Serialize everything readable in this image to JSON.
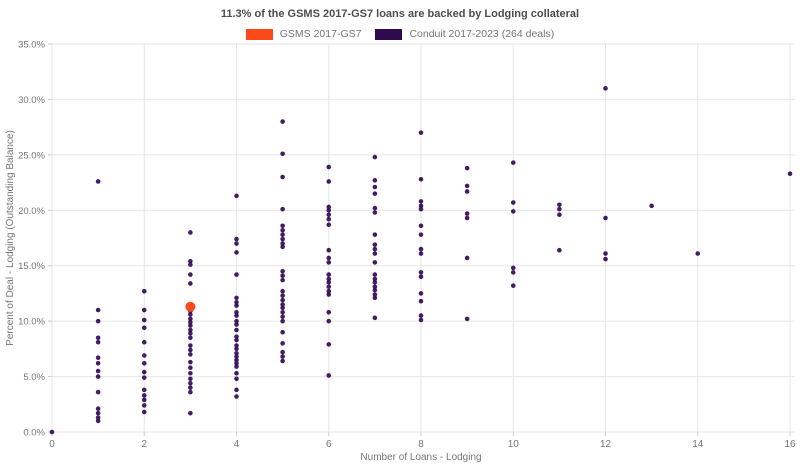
{
  "legend": [
    {
      "label": "GSMS 2017-GS7",
      "color": "#fb4a19"
    },
    {
      "label": "Conduit 2017-2023 (264 deals)",
      "color": "#2f0a4e"
    }
  ],
  "chart_data": {
    "type": "scatter",
    "title": "11.3% of the GSMS 2017-GS7 loans are backed by Lodging collateral",
    "xlabel": "Number of Loans - Lodging",
    "ylabel": "Percent of Deal - Lodging (Outstanding Balance)",
    "xlim": [
      0,
      16
    ],
    "ylim": [
      0,
      35
    ],
    "x_ticks": [
      0,
      2,
      4,
      6,
      8,
      10,
      12,
      14,
      16
    ],
    "y_tick_values": [
      0,
      5,
      10,
      15,
      20,
      25,
      30,
      35
    ],
    "y_tick_labels": [
      "0.0%",
      "5.0%",
      "10.0%",
      "15.0%",
      "20.0%",
      "25.0%",
      "30.0%",
      "35.0%"
    ],
    "grid": true,
    "legend_position": "top-center",
    "series": [
      {
        "name": "GSMS 2017-GS7",
        "color": "#fb4a19",
        "marker_radius": 5,
        "points": [
          [
            3,
            11.3
          ]
        ]
      },
      {
        "name": "Conduit 2017-2023 (264 deals)",
        "color": "#330a56",
        "marker_radius": 2.3,
        "points": [
          [
            0,
            0.0
          ],
          [
            1,
            22.6
          ],
          [
            1,
            11.0
          ],
          [
            1,
            10.0
          ],
          [
            1,
            8.5
          ],
          [
            1,
            8.1
          ],
          [
            1,
            6.7
          ],
          [
            1,
            6.2
          ],
          [
            1,
            5.5
          ],
          [
            1,
            5.0
          ],
          [
            1,
            3.6
          ],
          [
            1,
            2.1
          ],
          [
            1,
            1.7
          ],
          [
            1,
            1.3
          ],
          [
            1,
            1.0
          ],
          [
            2,
            12.7
          ],
          [
            2,
            11.0
          ],
          [
            2,
            10.1
          ],
          [
            2,
            9.4
          ],
          [
            2,
            8.1
          ],
          [
            2,
            6.9
          ],
          [
            2,
            6.2
          ],
          [
            2,
            5.4
          ],
          [
            2,
            4.9
          ],
          [
            2,
            3.8
          ],
          [
            2,
            3.3
          ],
          [
            2,
            2.9
          ],
          [
            2,
            2.4
          ],
          [
            2,
            1.8
          ],
          [
            3,
            18.0
          ],
          [
            3,
            15.4
          ],
          [
            3,
            15.1
          ],
          [
            3,
            14.2
          ],
          [
            3,
            13.4
          ],
          [
            3,
            10.9
          ],
          [
            3,
            10.6
          ],
          [
            3,
            10.2
          ],
          [
            3,
            9.9
          ],
          [
            3,
            9.6
          ],
          [
            3,
            9.2
          ],
          [
            3,
            8.9
          ],
          [
            3,
            8.5
          ],
          [
            3,
            7.8
          ],
          [
            3,
            7.4
          ],
          [
            3,
            7.0
          ],
          [
            3,
            6.3
          ],
          [
            3,
            5.8
          ],
          [
            3,
            5.3
          ],
          [
            3,
            4.8
          ],
          [
            3,
            4.4
          ],
          [
            3,
            4.0
          ],
          [
            3,
            3.6
          ],
          [
            3,
            1.7
          ],
          [
            4,
            21.3
          ],
          [
            4,
            17.4
          ],
          [
            4,
            17.0
          ],
          [
            4,
            16.2
          ],
          [
            4,
            14.2
          ],
          [
            4,
            12.1
          ],
          [
            4,
            11.7
          ],
          [
            4,
            11.4
          ],
          [
            4,
            10.8
          ],
          [
            4,
            10.5
          ],
          [
            4,
            10.0
          ],
          [
            4,
            9.7
          ],
          [
            4,
            9.2
          ],
          [
            4,
            8.6
          ],
          [
            4,
            8.3
          ],
          [
            4,
            7.8
          ],
          [
            4,
            7.5
          ],
          [
            4,
            7.1
          ],
          [
            4,
            6.8
          ],
          [
            4,
            6.5
          ],
          [
            4,
            6.2
          ],
          [
            4,
            5.9
          ],
          [
            4,
            5.3
          ],
          [
            4,
            4.8
          ],
          [
            4,
            3.8
          ],
          [
            4,
            3.2
          ],
          [
            5,
            28.0
          ],
          [
            5,
            25.1
          ],
          [
            5,
            23.0
          ],
          [
            5,
            20.1
          ],
          [
            5,
            18.6
          ],
          [
            5,
            18.2
          ],
          [
            5,
            17.8
          ],
          [
            5,
            17.4
          ],
          [
            5,
            17.0
          ],
          [
            5,
            16.7
          ],
          [
            5,
            14.5
          ],
          [
            5,
            14.1
          ],
          [
            5,
            13.7
          ],
          [
            5,
            12.7
          ],
          [
            5,
            12.3
          ],
          [
            5,
            11.9
          ],
          [
            5,
            11.5
          ],
          [
            5,
            11.2
          ],
          [
            5,
            10.8
          ],
          [
            5,
            10.4
          ],
          [
            5,
            10.0
          ],
          [
            5,
            9.0
          ],
          [
            5,
            8.0
          ],
          [
            5,
            7.2
          ],
          [
            5,
            6.8
          ],
          [
            5,
            6.4
          ],
          [
            6,
            23.9
          ],
          [
            6,
            22.6
          ],
          [
            6,
            20.3
          ],
          [
            6,
            20.0
          ],
          [
            6,
            19.6
          ],
          [
            6,
            19.2
          ],
          [
            6,
            18.7
          ],
          [
            6,
            16.4
          ],
          [
            6,
            15.7
          ],
          [
            6,
            15.3
          ],
          [
            6,
            14.2
          ],
          [
            6,
            13.8
          ],
          [
            6,
            13.5
          ],
          [
            6,
            13.1
          ],
          [
            6,
            12.7
          ],
          [
            6,
            12.4
          ],
          [
            6,
            10.8
          ],
          [
            6,
            10.0
          ],
          [
            6,
            7.9
          ],
          [
            6,
            5.1
          ],
          [
            7,
            24.8
          ],
          [
            7,
            22.7
          ],
          [
            7,
            22.1
          ],
          [
            7,
            21.5
          ],
          [
            7,
            20.2
          ],
          [
            7,
            19.8
          ],
          [
            7,
            17.8
          ],
          [
            7,
            16.9
          ],
          [
            7,
            16.5
          ],
          [
            7,
            16.1
          ],
          [
            7,
            15.3
          ],
          [
            7,
            14.2
          ],
          [
            7,
            13.8
          ],
          [
            7,
            13.5
          ],
          [
            7,
            13.1
          ],
          [
            7,
            12.8
          ],
          [
            7,
            12.4
          ],
          [
            7,
            12.1
          ],
          [
            7,
            10.3
          ],
          [
            8,
            27.0
          ],
          [
            8,
            22.8
          ],
          [
            8,
            20.8
          ],
          [
            8,
            20.4
          ],
          [
            8,
            20.1
          ],
          [
            8,
            18.6
          ],
          [
            8,
            17.8
          ],
          [
            8,
            16.5
          ],
          [
            8,
            16.1
          ],
          [
            8,
            14.4
          ],
          [
            8,
            14.0
          ],
          [
            8,
            12.5
          ],
          [
            8,
            11.8
          ],
          [
            8,
            10.5
          ],
          [
            8,
            10.1
          ],
          [
            9,
            23.8
          ],
          [
            9,
            22.2
          ],
          [
            9,
            21.7
          ],
          [
            9,
            19.7
          ],
          [
            9,
            19.3
          ],
          [
            9,
            15.7
          ],
          [
            9,
            10.2
          ],
          [
            10,
            24.3
          ],
          [
            10,
            20.7
          ],
          [
            10,
            19.9
          ],
          [
            10,
            14.8
          ],
          [
            10,
            14.4
          ],
          [
            10,
            13.2
          ],
          [
            11,
            20.5
          ],
          [
            11,
            20.1
          ],
          [
            11,
            19.6
          ],
          [
            11,
            16.4
          ],
          [
            12,
            31.0
          ],
          [
            12,
            19.3
          ],
          [
            12,
            16.1
          ],
          [
            12,
            15.6
          ],
          [
            13,
            20.4
          ],
          [
            14,
            16.1
          ],
          [
            16,
            23.3
          ]
        ]
      }
    ]
  }
}
